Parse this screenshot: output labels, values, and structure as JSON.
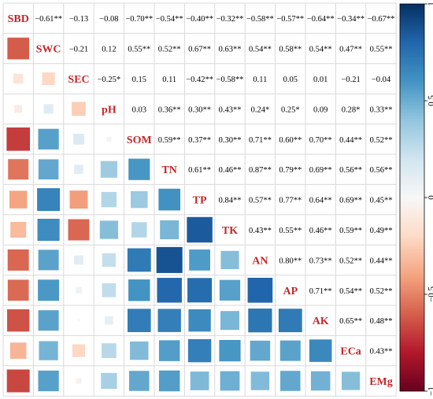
{
  "chart_data": {
    "type": "heatmap",
    "variables": [
      "SBD",
      "SWC",
      "SEC",
      "pH",
      "SOM",
      "TN",
      "TP",
      "TK",
      "AN",
      "AP",
      "AK",
      "ECa",
      "EMg"
    ],
    "matrix": [
      [
        1,
        -0.61,
        -0.13,
        -0.08,
        -0.7,
        -0.54,
        -0.4,
        -0.32,
        -0.58,
        -0.57,
        -0.64,
        -0.34,
        -0.67
      ],
      [
        -0.61,
        1,
        -0.21,
        0.12,
        0.55,
        0.52,
        0.67,
        0.63,
        0.54,
        0.58,
        0.54,
        0.47,
        0.55
      ],
      [
        -0.13,
        -0.21,
        1,
        -0.25,
        0.15,
        0.11,
        -0.42,
        -0.58,
        0.11,
        0.05,
        0.01,
        -0.21,
        -0.04
      ],
      [
        -0.08,
        0.12,
        -0.25,
        1,
        0.03,
        0.36,
        0.3,
        0.43,
        0.24,
        0.25,
        0.09,
        0.28,
        0.33
      ],
      [
        -0.7,
        0.55,
        0.15,
        0.03,
        1,
        0.59,
        0.37,
        0.3,
        0.71,
        0.6,
        0.7,
        0.44,
        0.52
      ],
      [
        -0.54,
        0.52,
        0.11,
        0.36,
        0.59,
        1,
        0.61,
        0.46,
        0.87,
        0.79,
        0.69,
        0.56,
        0.56
      ],
      [
        -0.4,
        0.67,
        -0.42,
        0.3,
        0.37,
        0.61,
        1,
        0.84,
        0.57,
        0.77,
        0.64,
        0.69,
        0.45
      ],
      [
        -0.32,
        0.63,
        -0.58,
        0.43,
        0.3,
        0.46,
        0.84,
        1,
        0.43,
        0.55,
        0.46,
        0.59,
        0.49
      ],
      [
        -0.58,
        0.54,
        0.11,
        0.24,
        0.71,
        0.87,
        0.57,
        0.43,
        1,
        0.8,
        0.73,
        0.52,
        0.44
      ],
      [
        -0.57,
        0.58,
        0.05,
        0.25,
        0.6,
        0.79,
        0.77,
        0.55,
        0.8,
        1,
        0.71,
        0.54,
        0.52
      ],
      [
        -0.64,
        0.54,
        0.01,
        0.09,
        0.7,
        0.69,
        0.64,
        0.46,
        0.73,
        0.71,
        1,
        0.65,
        0.48
      ],
      [
        -0.34,
        0.47,
        -0.21,
        0.28,
        0.44,
        0.56,
        0.69,
        0.59,
        0.52,
        0.54,
        0.65,
        1,
        0.43
      ],
      [
        -0.67,
        0.55,
        -0.04,
        0.33,
        0.52,
        0.56,
        0.45,
        0.49,
        0.44,
        0.52,
        0.48,
        0.43,
        1
      ]
    ],
    "upper_labels": [
      [
        "",
        "−0.61**",
        "−0.13",
        "−0.08",
        "−0.70**",
        "−0.54**",
        "−0.40**",
        "−0.32**",
        "−0.58**",
        "−0.57**",
        "−0.64**",
        "−0.34**",
        "−0.67**"
      ],
      [
        "",
        "",
        "−0.21",
        "0.12",
        "0.55**",
        "0.52**",
        "0.67**",
        "0.63**",
        "0.54**",
        "0.58**",
        "0.54**",
        "0.47**",
        "0.55**"
      ],
      [
        "",
        "",
        "",
        "−0.25*",
        "0.15",
        "0.11",
        "−0.42**",
        "−0.58**",
        "0.11",
        "0.05",
        "0.01",
        "−0.21",
        "−0.04"
      ],
      [
        "",
        "",
        "",
        "",
        "0.03",
        "0.36**",
        "0.30**",
        "0.43**",
        "0.24*",
        "0.25*",
        "0.09",
        "0.28*",
        "0.33**"
      ],
      [
        "",
        "",
        "",
        "",
        "",
        "0.59**",
        "0.37**",
        "0.30**",
        "0.71**",
        "0.60**",
        "0.70**",
        "0.44**",
        "0.52**"
      ],
      [
        "",
        "",
        "",
        "",
        "",
        "",
        "0.61**",
        "0.46**",
        "0.87**",
        "0.79**",
        "0.69**",
        "0.56**",
        "0.56**"
      ],
      [
        "",
        "",
        "",
        "",
        "",
        "",
        "",
        "0.84**",
        "0.57**",
        "0.77**",
        "0.64**",
        "0.69**",
        "0.45**"
      ],
      [
        "",
        "",
        "",
        "",
        "",
        "",
        "",
        "",
        "0.43**",
        "0.55**",
        "0.46**",
        "0.59**",
        "0.49**"
      ],
      [
        "",
        "",
        "",
        "",
        "",
        "",
        "",
        "",
        "",
        "0.80**",
        "0.73**",
        "0.52**",
        "0.44**"
      ],
      [
        "",
        "",
        "",
        "",
        "",
        "",
        "",
        "",
        "",
        "",
        "0.71**",
        "0.54**",
        "0.52**"
      ],
      [
        "",
        "",
        "",
        "",
        "",
        "",
        "",
        "",
        "",
        "",
        "",
        "0.65**",
        "0.48**"
      ],
      [
        "",
        "",
        "",
        "",
        "",
        "",
        "",
        "",
        "",
        "",
        "",
        "",
        "0.43**"
      ],
      [
        "",
        "",
        "",
        "",
        "",
        "",
        "",
        "",
        "",
        "",
        "",
        "",
        ""
      ]
    ],
    "colorbar": {
      "range": [
        -1,
        1
      ],
      "ticks": [
        -1,
        -0.5,
        0,
        0.5,
        1
      ],
      "tick_labels": [
        "−1",
        "−0.5",
        "0",
        "0.5",
        "1"
      ],
      "colors": [
        "#67001f",
        "#b2182b",
        "#d6604d",
        "#f4a582",
        "#fddbc7",
        "#f7f7f7",
        "#d1e5f0",
        "#92c5de",
        "#4393c3",
        "#2166ac",
        "#053061"
      ]
    },
    "lower_triangle": "squares sized by absolute value",
    "diagonal": "labels",
    "grid": true,
    "legend_placement": "right"
  }
}
